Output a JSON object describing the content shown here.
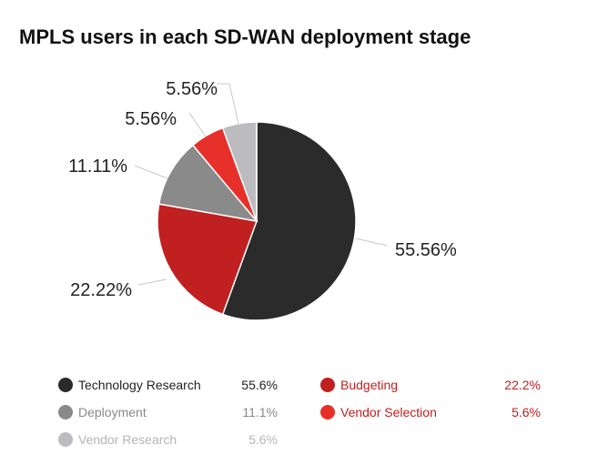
{
  "chart_data": {
    "type": "pie",
    "title": "MPLS users in each SD-WAN deployment stage",
    "slices": [
      {
        "name": "Technology Research",
        "value": 55.56,
        "label": "55.56%",
        "legend_value": "55.6%",
        "color": "#2b2b2b"
      },
      {
        "name": "Budgeting",
        "value": 22.22,
        "label": "22.22%",
        "legend_value": "22.2%",
        "color": "#c0201f"
      },
      {
        "name": "Deployment",
        "value": 11.11,
        "label": "11.11%",
        "legend_value": "11.1%",
        "color": "#8a8a8a"
      },
      {
        "name": "Vendor Selection",
        "value": 5.56,
        "label": "5.56%",
        "legend_value": "5.6%",
        "color": "#e8302a"
      },
      {
        "name": "Vendor Research",
        "value": 5.56,
        "label": "5.56%",
        "legend_value": "5.6%",
        "color": "#bcbcc0"
      }
    ],
    "start": "top",
    "direction": "clockwise",
    "legend_position": "bottom"
  },
  "legend_text_colors": {
    "Technology Research": "#222222",
    "Deployment": "#888888",
    "Vendor Research": "#b5b5b5",
    "Budgeting": "#c0201f",
    "Vendor Selection": "#c0201f"
  }
}
